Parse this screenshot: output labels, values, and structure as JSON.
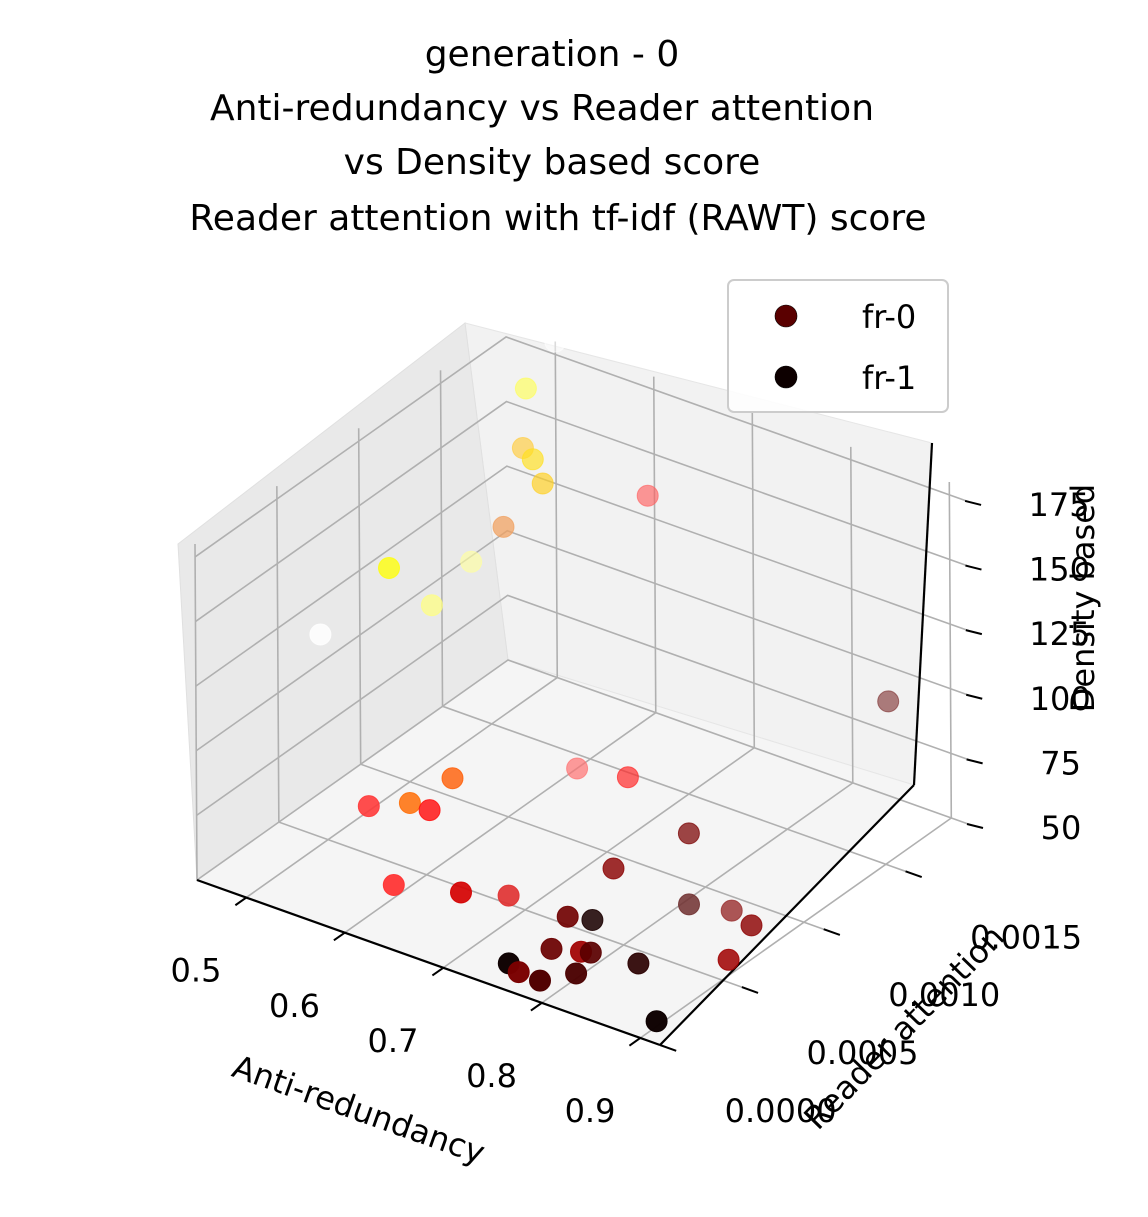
{
  "chart_data": {
    "type": "scatter",
    "title_lines": [
      "generation - 0",
      "Anti-redundancy vs Reader attention",
      "vs  Density based score",
      "Reader attention with tf-idf (RAWT) score"
    ],
    "xlabel": "Anti-redundancy",
    "ylabel": "Reader attention",
    "zlabel": "Density based",
    "xlim": [
      0.45,
      0.92
    ],
    "ylim": [
      0.0,
      0.0019
    ],
    "zlim": [
      50,
      180
    ],
    "x_ticks": [
      "0.5",
      "0.6",
      "0.7",
      "0.8",
      "0.9"
    ],
    "y_ticks": [
      "0.0000",
      "0.0005",
      "0.0010",
      "0.0015"
    ],
    "z_ticks": [
      "50",
      "75",
      "100",
      "125",
      "150",
      "175"
    ],
    "grid": true,
    "legend_position": "top-right",
    "legend": [
      {
        "label": "fr-0",
        "color": "#5a0000"
      },
      {
        "label": "fr-1",
        "color": "#0d0000"
      }
    ],
    "series": [
      {
        "name": "fr-0",
        "points": [
          {
            "x": 0.68,
            "y": 0.00125,
            "z": 65,
            "color": "#ff2a2a"
          },
          {
            "x": 0.62,
            "y": 0.0013,
            "z": 58,
            "color": "#ff7070"
          },
          {
            "x": 0.55,
            "y": 0.00045,
            "z": 72,
            "color": "#ff3838"
          },
          {
            "x": 0.56,
            "y": 0.0009,
            "z": 64,
            "color": "#ff5a00"
          },
          {
            "x": 0.55,
            "y": 0.0007,
            "z": 62,
            "color": "#ff6a00"
          },
          {
            "x": 0.57,
            "y": 0.0007,
            "z": 62,
            "color": "#ff1010"
          },
          {
            "x": 0.6,
            "y": 0.0003,
            "z": 55,
            "color": "#ff3030"
          },
          {
            "x": 0.66,
            "y": 0.00035,
            "z": 58,
            "color": "#d40000"
          },
          {
            "x": 0.7,
            "y": 0.0004,
            "z": 60,
            "color": "#e03030"
          },
          {
            "x": 0.75,
            "y": 0.0012,
            "z": 55,
            "color": "#7a0000"
          },
          {
            "x": 0.74,
            "y": 0.0008,
            "z": 58,
            "color": "#8a0000"
          },
          {
            "x": 0.76,
            "y": 0.0004,
            "z": 60,
            "color": "#700000"
          },
          {
            "x": 0.76,
            "y": 0.0003,
            "z": 52,
            "color": "#6a0000"
          },
          {
            "x": 0.79,
            "y": 0.0003,
            "z": 55,
            "color": "#a00000"
          },
          {
            "x": 0.86,
            "y": 0.0008,
            "z": 58,
            "color": "#9a3030"
          },
          {
            "x": 0.88,
            "y": 0.0008,
            "z": 55,
            "color": "#8c0000"
          },
          {
            "x": 0.89,
            "y": 0.0006,
            "z": 52,
            "color": "#a00000"
          },
          {
            "x": 0.76,
            "y": 0.0001,
            "z": 52,
            "color": "#7a0000"
          },
          {
            "x": 0.79,
            "y": 5e-05,
            "z": 55,
            "color": "#500000"
          },
          {
            "x": 0.8,
            "y": 0.0003,
            "z": 56,
            "color": "#5a0000"
          },
          {
            "x": 0.84,
            "y": 0.00035,
            "z": 55,
            "color": "#2a0000"
          },
          {
            "x": 0.81,
            "y": 0.00015,
            "z": 56,
            "color": "#4a0000"
          },
          {
            "x": 0.76,
            "y": 0.00055,
            "z": 52,
            "color": "#1a0000"
          },
          {
            "x": 0.85,
            "y": 0.0006,
            "z": 68,
            "color": "#703030"
          },
          {
            "x": 0.87,
            "y": 0.0017,
            "z": 100,
            "color": "#7a2a2a"
          },
          {
            "x": 0.66,
            "y": 0.0015,
            "z": 160,
            "color": "#ff6060"
          },
          {
            "x": 0.52,
            "y": 0.0016,
            "z": 178,
            "color": "#ffff50"
          },
          {
            "x": 0.55,
            "y": 0.0014,
            "z": 168,
            "color": "#ffcc40"
          },
          {
            "x": 0.56,
            "y": 0.0014,
            "z": 165,
            "color": "#ffe020"
          },
          {
            "x": 0.58,
            "y": 0.0011,
            "z": 155,
            "color": "#f0a060"
          },
          {
            "x": 0.57,
            "y": 0.0014,
            "z": 157,
            "color": "#ffd020"
          },
          {
            "x": 0.48,
            "y": 0.001,
            "z": 130,
            "color": "#ffff00"
          },
          {
            "x": 0.49,
            "y": 0.0012,
            "z": 108,
            "color": "#ffff80"
          },
          {
            "x": 0.48,
            "y": 0.0015,
            "z": 110,
            "color": "#ffffa0"
          },
          {
            "x": 0.5,
            "y": 0.0019,
            "z": 180,
            "color": "#ffffff"
          },
          {
            "x": 0.46,
            "y": 0.0007,
            "z": 115,
            "color": "#ffffff"
          }
        ]
      },
      {
        "name": "fr-1",
        "points": [
          {
            "x": 0.9,
            "y": 0.0001,
            "z": 52,
            "color": "#0d0000"
          },
          {
            "x": 0.75,
            "y": 0.0001,
            "z": 54,
            "color": "#0d0000"
          }
        ]
      }
    ]
  }
}
